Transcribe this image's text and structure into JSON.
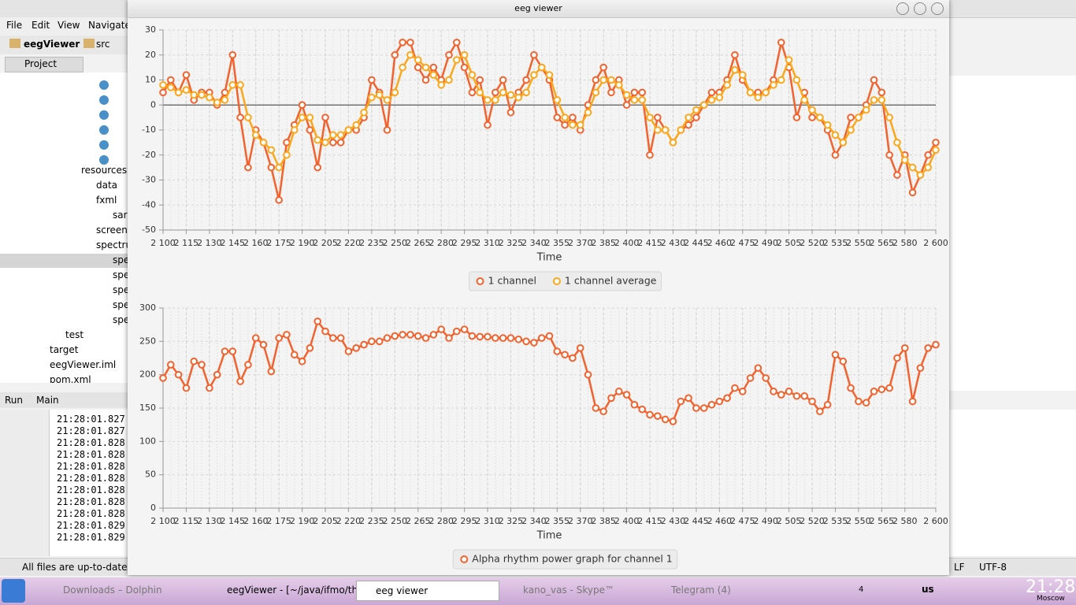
{
  "ide": {
    "menu": [
      "File",
      "Edit",
      "View",
      "Navigate"
    ],
    "breadcrumb": [
      "eegViewer",
      "src"
    ],
    "project_tab": "Project",
    "tree": [
      "resources",
      "data",
      "fxml",
      "sar",
      "screen",
      "spectru",
      "spe",
      "spe",
      "spe",
      "spe",
      "spe",
      "test",
      "target",
      "eegViewer.iml",
      "pom.xml"
    ],
    "run_tabs": [
      "Run",
      "Main"
    ],
    "log": [
      "21:28:01.827",
      "21:28:01.827",
      "21:28:01.828",
      "21:28:01.828",
      "21:28:01.828",
      "21:28:01.828",
      "21:28:01.828",
      "21:28:01.828",
      "21:28:01.828",
      "21:28:01.829",
      "21:28:01.829"
    ],
    "status": "All files are up-to-date (n",
    "encoding": [
      "LF",
      "UTF-8"
    ]
  },
  "window": {
    "title": "eeg viewer"
  },
  "chart_data": [
    {
      "type": "line",
      "xlabel": "Time",
      "x": [
        2100,
        2105,
        2110,
        2115,
        2120,
        2125,
        2130,
        2135,
        2140,
        2145,
        2150,
        2155,
        2160,
        2165,
        2170,
        2175,
        2180,
        2185,
        2190,
        2195,
        2200,
        2205,
        2210,
        2215,
        2220,
        2225,
        2230,
        2235,
        2240,
        2245,
        2250,
        2255,
        2260,
        2265,
        2270,
        2275,
        2280,
        2285,
        2290,
        2295,
        2300,
        2305,
        2310,
        2315,
        2320,
        2325,
        2330,
        2335,
        2340,
        2345,
        2350,
        2355,
        2360,
        2365,
        2370,
        2375,
        2380,
        2385,
        2390,
        2395,
        2400,
        2405,
        2410,
        2415,
        2420,
        2425,
        2430,
        2435,
        2440,
        2445,
        2450,
        2455,
        2460,
        2465,
        2470,
        2475,
        2480,
        2485,
        2490,
        2495,
        2500,
        2505,
        2510,
        2515,
        2520,
        2525,
        2530,
        2535,
        2540,
        2545,
        2550,
        2555,
        2560,
        2565,
        2570,
        2575,
        2580,
        2585,
        2590,
        2595,
        2600
      ],
      "xlim": [
        2100,
        2600
      ],
      "xticks": [
        {
          "value": 2100,
          "label": "2 100"
        },
        {
          "value": 2115,
          "label": "2 115"
        },
        {
          "value": 2130,
          "label": "2 130"
        },
        {
          "value": 2145,
          "label": "2 145"
        },
        {
          "value": 2160,
          "label": "2 160"
        },
        {
          "value": 2175,
          "label": "2 175"
        },
        {
          "value": 2190,
          "label": "2 190"
        },
        {
          "value": 2205,
          "label": "2 205"
        },
        {
          "value": 2220,
          "label": "2 220"
        },
        {
          "value": 2235,
          "label": "2 235"
        },
        {
          "value": 2250,
          "label": "2 250"
        },
        {
          "value": 2265,
          "label": "2 265"
        },
        {
          "value": 2280,
          "label": "2 280"
        },
        {
          "value": 2295,
          "label": "2 295"
        },
        {
          "value": 2310,
          "label": "2 310"
        },
        {
          "value": 2325,
          "label": "2 325"
        },
        {
          "value": 2340,
          "label": "2 340"
        },
        {
          "value": 2355,
          "label": "2 355"
        },
        {
          "value": 2370,
          "label": "2 370"
        },
        {
          "value": 2385,
          "label": "2 385"
        },
        {
          "value": 2400,
          "label": "2 400"
        },
        {
          "value": 2415,
          "label": "2 415"
        },
        {
          "value": 2430,
          "label": "2 430"
        },
        {
          "value": 2445,
          "label": "2 445"
        },
        {
          "value": 2460,
          "label": "2 460"
        },
        {
          "value": 2475,
          "label": "2 475"
        },
        {
          "value": 2490,
          "label": "2 490"
        },
        {
          "value": 2505,
          "label": "2 505"
        },
        {
          "value": 2520,
          "label": "2 520"
        },
        {
          "value": 2535,
          "label": "2 535"
        },
        {
          "value": 2550,
          "label": "2 550"
        },
        {
          "value": 2565,
          "label": "2 565"
        },
        {
          "value": 2580,
          "label": "2 580"
        },
        {
          "value": 2600,
          "label": "2 600"
        }
      ],
      "ylim": [
        -50,
        30
      ],
      "yticks": [
        -50,
        -40,
        -30,
        -20,
        -10,
        0,
        10,
        20,
        30
      ],
      "grid": true,
      "legend": "bottom",
      "series": [
        {
          "name": "1 channel",
          "color": "#f3622d",
          "values": [
            5,
            10,
            5,
            12,
            2,
            5,
            5,
            0,
            5,
            20,
            -5,
            -25,
            -10,
            -15,
            -25,
            -38,
            -15,
            -8,
            0,
            -10,
            -25,
            -5,
            -15,
            -15,
            -10,
            -10,
            -5,
            10,
            5,
            -10,
            20,
            25,
            25,
            15,
            10,
            15,
            10,
            20,
            25,
            15,
            5,
            10,
            -8,
            5,
            10,
            -3,
            5,
            10,
            20,
            15,
            10,
            -5,
            -8,
            -5,
            -10,
            0,
            10,
            15,
            5,
            10,
            0,
            5,
            5,
            -20,
            -5,
            -10,
            -15,
            -10,
            -8,
            -5,
            0,
            5,
            5,
            10,
            20,
            10,
            5,
            5,
            5,
            10,
            25,
            15,
            -5,
            5,
            -5,
            -5,
            -10,
            -20,
            -15,
            -5,
            -5,
            0,
            10,
            5,
            -20,
            -28,
            -20,
            -35,
            -28,
            -20,
            -15
          ]
        },
        {
          "name": "1 channel average",
          "color": "#fba71b",
          "values": [
            8,
            7,
            5,
            6,
            4,
            4,
            3,
            1,
            2,
            8,
            8,
            -5,
            -12,
            -15,
            -18,
            -25,
            -20,
            -10,
            -5,
            -5,
            -14,
            -15,
            -12,
            -12,
            -10,
            -8,
            -3,
            3,
            4,
            2,
            5,
            15,
            20,
            18,
            15,
            12,
            8,
            10,
            18,
            20,
            12,
            5,
            2,
            2,
            5,
            4,
            3,
            5,
            12,
            15,
            12,
            2,
            -5,
            -8,
            -8,
            -3,
            5,
            10,
            10,
            8,
            4,
            2,
            2,
            -5,
            -10,
            -10,
            -15,
            -10,
            -5,
            -2,
            0,
            2,
            3,
            8,
            14,
            12,
            5,
            3,
            5,
            8,
            10,
            18,
            10,
            2,
            -2,
            -5,
            -8,
            -12,
            -15,
            -10,
            -5,
            -2,
            2,
            2,
            -5,
            -15,
            -22,
            -25,
            -28,
            -25,
            -18
          ]
        }
      ]
    },
    {
      "type": "line",
      "xlabel": "Time",
      "x": [
        2100,
        2105,
        2110,
        2115,
        2120,
        2125,
        2130,
        2135,
        2140,
        2145,
        2150,
        2155,
        2160,
        2165,
        2170,
        2175,
        2180,
        2185,
        2190,
        2195,
        2200,
        2205,
        2210,
        2215,
        2220,
        2225,
        2230,
        2235,
        2240,
        2245,
        2250,
        2255,
        2260,
        2265,
        2270,
        2275,
        2280,
        2285,
        2290,
        2295,
        2300,
        2305,
        2310,
        2315,
        2320,
        2325,
        2330,
        2335,
        2340,
        2345,
        2350,
        2355,
        2360,
        2365,
        2370,
        2375,
        2380,
        2385,
        2390,
        2395,
        2400,
        2405,
        2410,
        2415,
        2420,
        2425,
        2430,
        2435,
        2440,
        2445,
        2450,
        2455,
        2460,
        2465,
        2470,
        2475,
        2480,
        2485,
        2490,
        2495,
        2500,
        2505,
        2510,
        2515,
        2520,
        2525,
        2530,
        2535,
        2540,
        2545,
        2550,
        2555,
        2560,
        2565,
        2570,
        2575,
        2580,
        2585,
        2590,
        2595,
        2600
      ],
      "xlim": [
        2100,
        2600
      ],
      "xticks": [
        {
          "value": 2100,
          "label": "2 100"
        },
        {
          "value": 2115,
          "label": "2 115"
        },
        {
          "value": 2130,
          "label": "2 130"
        },
        {
          "value": 2145,
          "label": "2 145"
        },
        {
          "value": 2160,
          "label": "2 160"
        },
        {
          "value": 2175,
          "label": "2 175"
        },
        {
          "value": 2190,
          "label": "2 190"
        },
        {
          "value": 2205,
          "label": "2 205"
        },
        {
          "value": 2220,
          "label": "2 220"
        },
        {
          "value": 2235,
          "label": "2 235"
        },
        {
          "value": 2250,
          "label": "2 250"
        },
        {
          "value": 2265,
          "label": "2 265"
        },
        {
          "value": 2280,
          "label": "2 280"
        },
        {
          "value": 2295,
          "label": "2 295"
        },
        {
          "value": 2310,
          "label": "2 310"
        },
        {
          "value": 2325,
          "label": "2 325"
        },
        {
          "value": 2340,
          "label": "2 340"
        },
        {
          "value": 2355,
          "label": "2 355"
        },
        {
          "value": 2370,
          "label": "2 370"
        },
        {
          "value": 2385,
          "label": "2 385"
        },
        {
          "value": 2400,
          "label": "2 400"
        },
        {
          "value": 2415,
          "label": "2 415"
        },
        {
          "value": 2430,
          "label": "2 430"
        },
        {
          "value": 2445,
          "label": "2 445"
        },
        {
          "value": 2460,
          "label": "2 460"
        },
        {
          "value": 2475,
          "label": "2 475"
        },
        {
          "value": 2490,
          "label": "2 490"
        },
        {
          "value": 2505,
          "label": "2 505"
        },
        {
          "value": 2520,
          "label": "2 520"
        },
        {
          "value": 2535,
          "label": "2 535"
        },
        {
          "value": 2550,
          "label": "2 550"
        },
        {
          "value": 2565,
          "label": "2 565"
        },
        {
          "value": 2580,
          "label": "2 580"
        },
        {
          "value": 2600,
          "label": "2 600"
        }
      ],
      "ylim": [
        0,
        300
      ],
      "yticks": [
        0,
        50,
        100,
        150,
        200,
        250,
        300
      ],
      "grid": true,
      "legend": "bottom",
      "series": [
        {
          "name": "Alpha rhythm power graph for channel 1",
          "color": "#f3622d",
          "values": [
            195,
            215,
            200,
            180,
            220,
            215,
            180,
            200,
            235,
            235,
            190,
            215,
            255,
            245,
            205,
            255,
            260,
            230,
            220,
            240,
            280,
            265,
            255,
            255,
            235,
            240,
            245,
            250,
            250,
            255,
            258,
            260,
            260,
            258,
            255,
            260,
            268,
            255,
            265,
            268,
            258,
            257,
            257,
            255,
            255,
            255,
            253,
            250,
            248,
            255,
            258,
            235,
            230,
            225,
            240,
            200,
            150,
            145,
            165,
            175,
            170,
            155,
            148,
            140,
            138,
            133,
            130,
            160,
            165,
            150,
            150,
            155,
            160,
            165,
            180,
            175,
            195,
            210,
            195,
            175,
            170,
            175,
            168,
            168,
            160,
            145,
            155,
            230,
            220,
            180,
            160,
            158,
            175,
            178,
            180,
            225,
            240,
            160,
            210,
            240,
            245
          ]
        }
      ]
    }
  ],
  "taskbar": {
    "tasks": [
      "Downloads – Dolphin",
      "eegViewer - [~/java/ifmo/the",
      "eeg viewer",
      "kano_vas - Skype™",
      "Telegram (4)"
    ],
    "pager": "4",
    "layout": "us",
    "clock": "21:28",
    "timezone": "Moscow"
  }
}
